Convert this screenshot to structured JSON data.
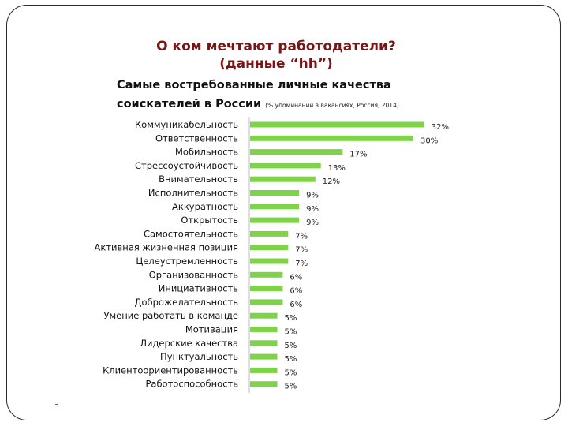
{
  "slide": {
    "title_line1": "О ком мечтают работодатели?",
    "title_line2": "(данные “hh”)"
  },
  "colors": {
    "bar": "#7ed348",
    "title": "#7a1515",
    "frame": "#2a2a2a"
  },
  "chart_data": {
    "type": "bar",
    "orientation": "horizontal",
    "title_line1": "Самые востребованные личные качества",
    "title_line2": "соискателей в России",
    "subtitle": "(% упоминаний в вакансиях, Россия, 2014)",
    "categories": [
      "Коммуникабельность",
      "Ответственность",
      "Мобильность",
      "Стрессоустойчивость",
      "Внимательность",
      "Исполнительность",
      "Аккуратность",
      "Открытость",
      "Самостоятельность",
      "Активная жизненная позиция",
      "Целеустремленность",
      "Организованность",
      "Инициативность",
      "Доброжелательность",
      "Умение работать в команде",
      "Мотивация",
      "Лидерские качества",
      "Пунктуальность",
      "Клиентоориентированность",
      "Работоспособность"
    ],
    "values": [
      32,
      30,
      17,
      13,
      12,
      9,
      9,
      9,
      7,
      7,
      7,
      6,
      6,
      6,
      5,
      5,
      5,
      5,
      5,
      5
    ],
    "value_labels": [
      "32%",
      "30%",
      "17%",
      "13%",
      "12%",
      "9%",
      "9%",
      "9%",
      "7%",
      "7%",
      "7%",
      "6%",
      "6%",
      "6%",
      "5%",
      "5%",
      "5%",
      "5%",
      "5%",
      "5%"
    ],
    "xlim": [
      0,
      35
    ],
    "grid": false,
    "legend": "none"
  }
}
